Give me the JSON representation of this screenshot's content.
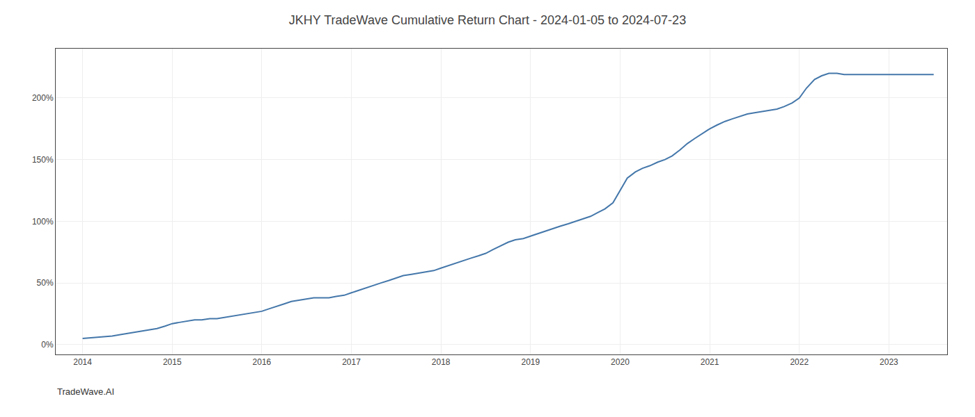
{
  "chart_data": {
    "type": "line",
    "title": "JKHY TradeWave Cumulative Return Chart - 2024-01-05 to 2024-07-23",
    "annotations": [
      "TradeWave.AI"
    ],
    "color": "#4477aa",
    "x": [
      2014.0,
      2014.08,
      2014.17,
      2014.25,
      2014.33,
      2014.42,
      2014.5,
      2014.58,
      2014.67,
      2014.75,
      2014.83,
      2014.92,
      2015.0,
      2015.08,
      2015.17,
      2015.25,
      2015.33,
      2015.42,
      2015.5,
      2015.58,
      2015.67,
      2015.75,
      2015.83,
      2015.92,
      2016.0,
      2016.08,
      2016.17,
      2016.25,
      2016.33,
      2016.42,
      2016.5,
      2016.58,
      2016.67,
      2016.75,
      2016.83,
      2016.92,
      2017.0,
      2017.08,
      2017.17,
      2017.25,
      2017.33,
      2017.42,
      2017.5,
      2017.58,
      2017.67,
      2017.75,
      2017.83,
      2017.92,
      2018.0,
      2018.08,
      2018.17,
      2018.25,
      2018.33,
      2018.42,
      2018.5,
      2018.58,
      2018.67,
      2018.75,
      2018.83,
      2018.92,
      2019.0,
      2019.08,
      2019.17,
      2019.25,
      2019.33,
      2019.42,
      2019.5,
      2019.58,
      2019.67,
      2019.75,
      2019.83,
      2019.92,
      2020.0,
      2020.08,
      2020.17,
      2020.25,
      2020.33,
      2020.42,
      2020.5,
      2020.58,
      2020.67,
      2020.75,
      2020.83,
      2020.92,
      2021.0,
      2021.08,
      2021.17,
      2021.25,
      2021.33,
      2021.42,
      2021.5,
      2021.58,
      2021.67,
      2021.75,
      2021.83,
      2021.92,
      2022.0,
      2022.08,
      2022.17,
      2022.25,
      2022.33,
      2022.42,
      2022.5,
      2022.58,
      2022.67,
      2022.75,
      2022.83,
      2022.92,
      2023.0,
      2023.08,
      2023.17,
      2023.25,
      2023.33,
      2023.42,
      2023.5
    ],
    "values": [
      5,
      5.5,
      6,
      6.5,
      7,
      8,
      9,
      10,
      11,
      12,
      13,
      15,
      17,
      18,
      19,
      20,
      20,
      21,
      21,
      22,
      23,
      24,
      25,
      26,
      27,
      29,
      31,
      33,
      35,
      36,
      37,
      38,
      38,
      38,
      39,
      40,
      42,
      44,
      46,
      48,
      50,
      52,
      54,
      56,
      57,
      58,
      59,
      60,
      62,
      64,
      66,
      68,
      70,
      72,
      74,
      77,
      80,
      83,
      85,
      86,
      88,
      90,
      92,
      94,
      96,
      98,
      100,
      102,
      104,
      107,
      110,
      115,
      125,
      135,
      140,
      143,
      145,
      148,
      150,
      153,
      158,
      163,
      167,
      171,
      175,
      178,
      181,
      183,
      185,
      187,
      188,
      189,
      190,
      191,
      193,
      196,
      200,
      208,
      215,
      218,
      220,
      220,
      219,
      219,
      219,
      219,
      219,
      219,
      219,
      219,
      219,
      219,
      219,
      219,
      219
    ],
    "xlim": [
      2013.7,
      2023.65
    ],
    "xticks": [
      2014,
      2015,
      2016,
      2017,
      2018,
      2019,
      2020,
      2021,
      2022,
      2023
    ],
    "ylim": [
      -8,
      240
    ],
    "yticks": [
      {
        "value": 0,
        "label": "0%"
      },
      {
        "value": 50,
        "label": "50%"
      },
      {
        "value": 100,
        "label": "100%"
      },
      {
        "value": 150,
        "label": "150%"
      },
      {
        "value": 200,
        "label": "200%"
      }
    ],
    "grid": true
  }
}
